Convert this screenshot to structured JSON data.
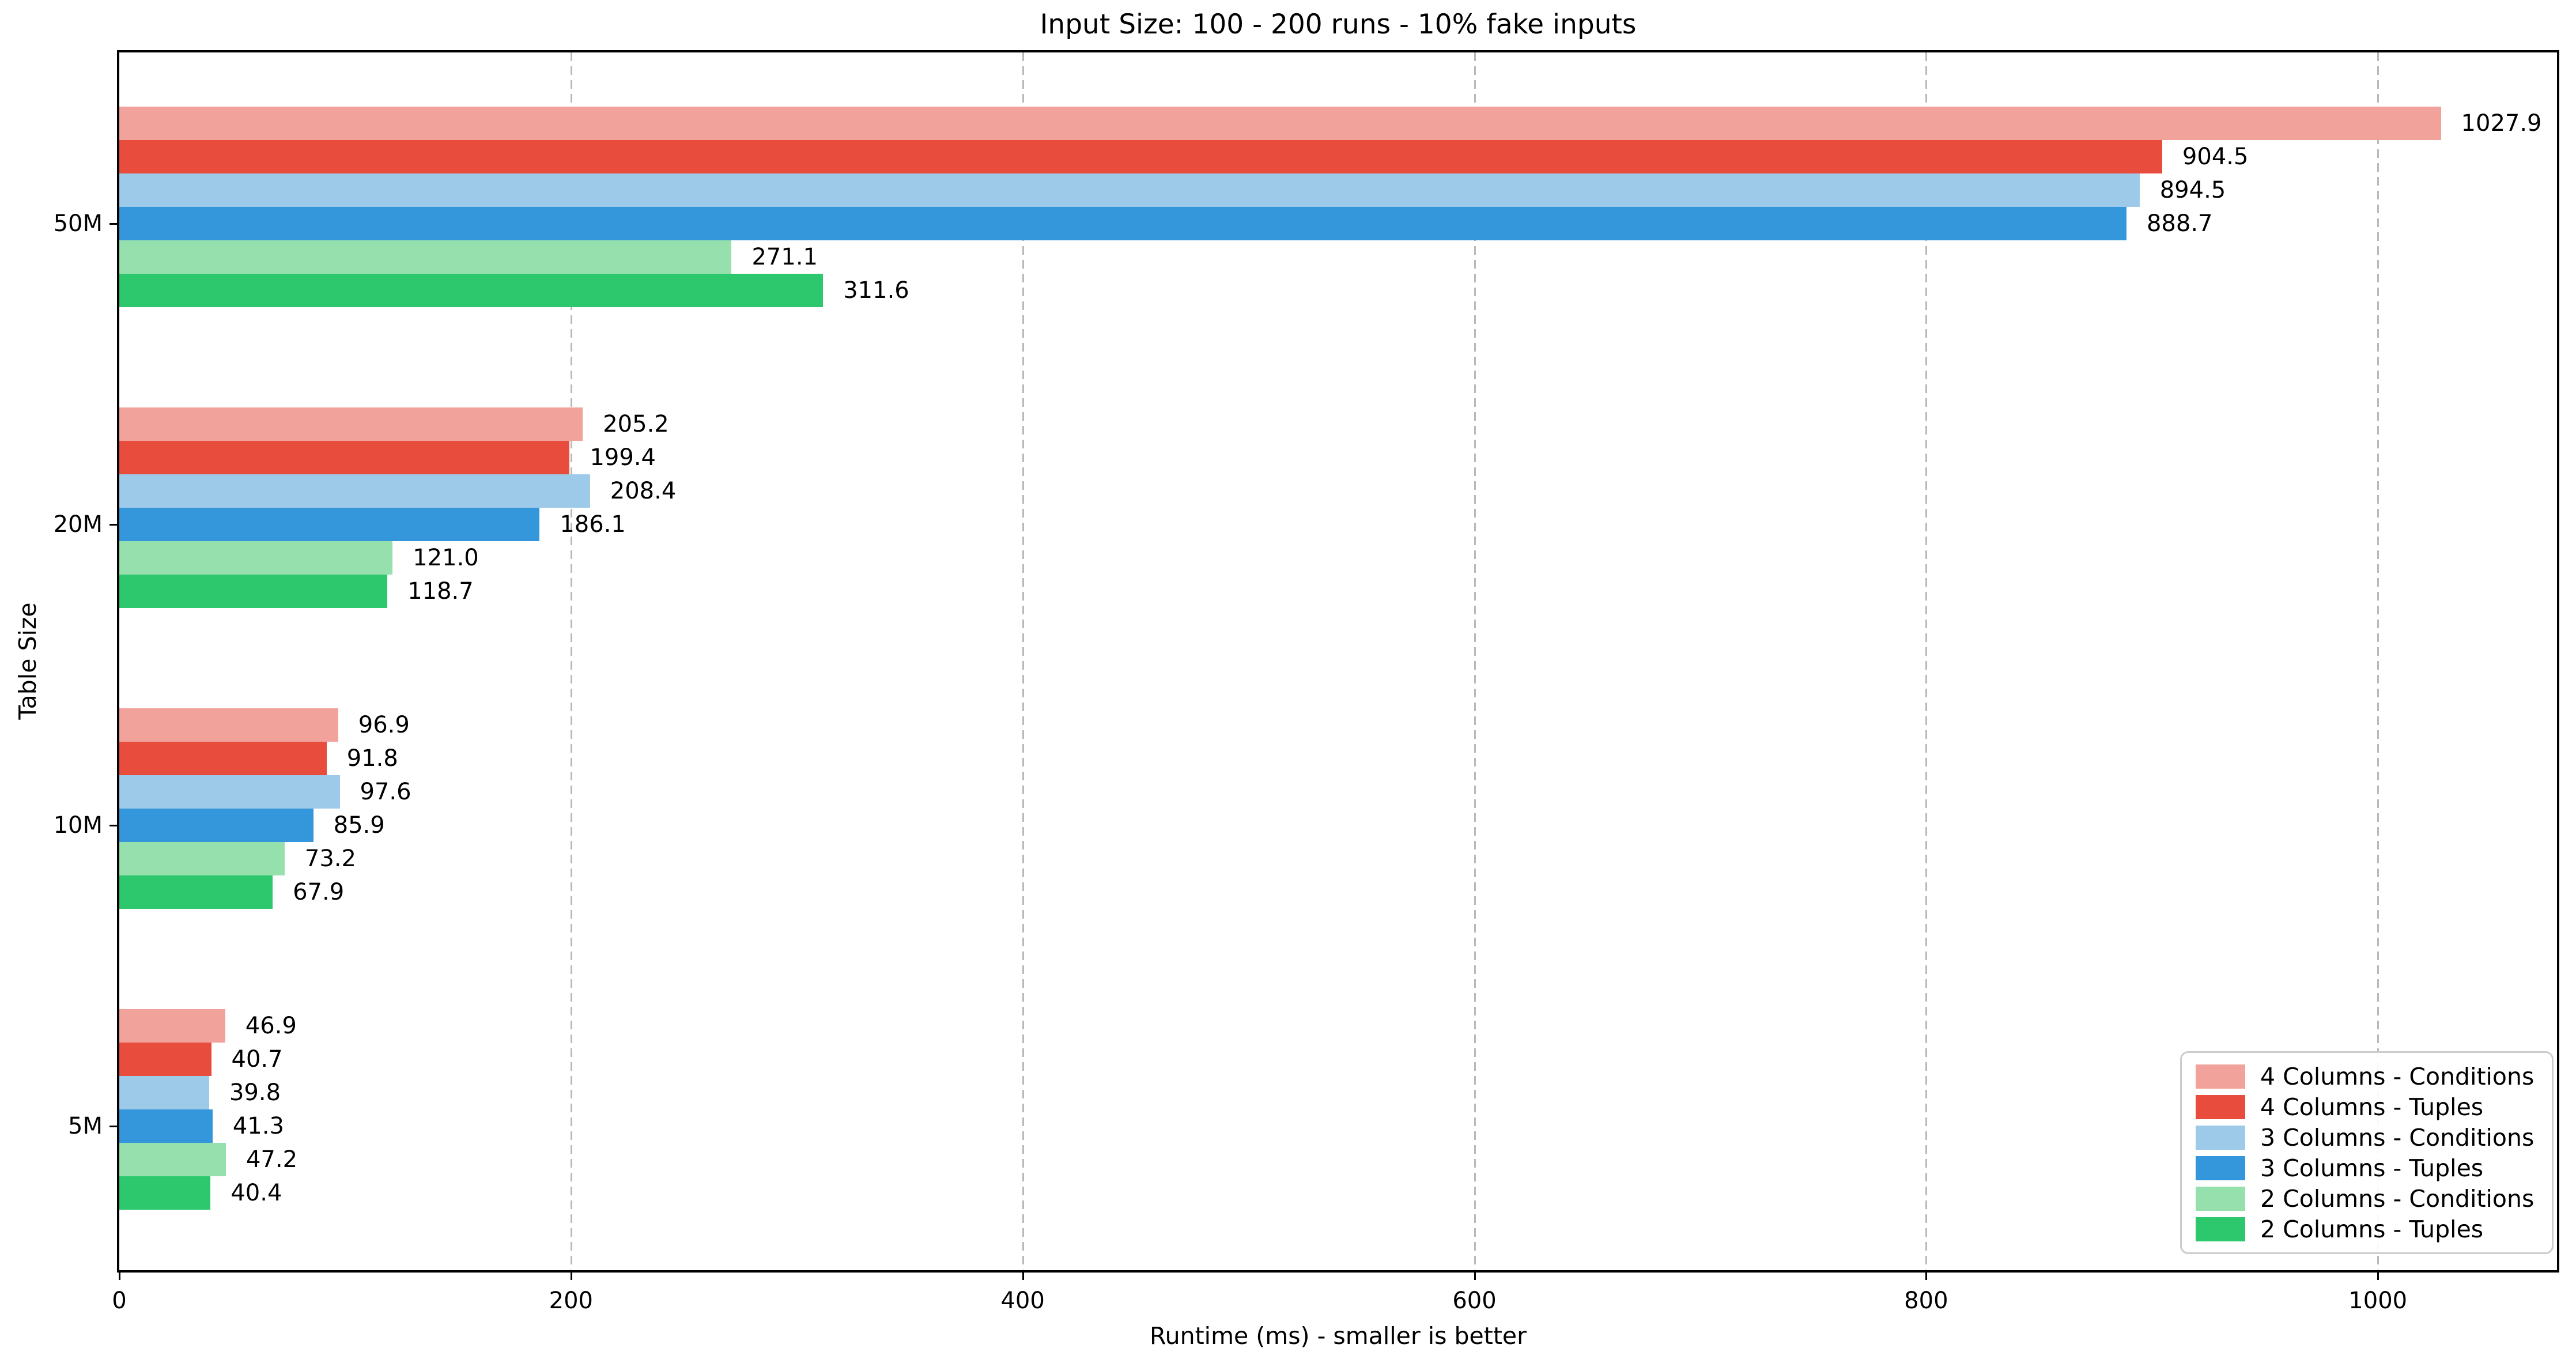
{
  "figure": {
    "title": "Input Size: 100 - 200 runs - 10% fake inputs",
    "xlabel": "Runtime (ms) - smaller is better",
    "ylabel": "Table Size"
  },
  "chart_data": {
    "type": "bar",
    "orientation": "horizontal",
    "title": "Input Size: 100 - 200 runs - 10% fake inputs",
    "xlabel": "Runtime (ms) - smaller is better",
    "ylabel": "Table Size",
    "categories": [
      "50M",
      "20M",
      "10M",
      "5M"
    ],
    "series": [
      {
        "name": "4 Columns - Conditions",
        "color": "#F1A29B",
        "values": [
          1027.9,
          205.2,
          96.9,
          46.9
        ]
      },
      {
        "name": "4 Columns - Tuples",
        "color": "#E74C3C",
        "values": [
          904.5,
          199.4,
          91.8,
          40.7
        ]
      },
      {
        "name": "3 Columns - Conditions",
        "color": "#9DCAE9",
        "values": [
          894.5,
          208.4,
          97.6,
          39.8
        ]
      },
      {
        "name": "3 Columns - Tuples",
        "color": "#3496DB",
        "values": [
          888.7,
          186.1,
          85.9,
          41.3
        ]
      },
      {
        "name": "2 Columns - Conditions",
        "color": "#96E0AD",
        "values": [
          271.1,
          121.0,
          73.2,
          47.2
        ]
      },
      {
        "name": "2 Columns - Tuples",
        "color": "#2DC86E",
        "values": [
          311.6,
          118.7,
          67.9,
          40.4
        ]
      }
    ],
    "xticks": [
      0,
      200,
      400,
      600,
      800,
      1000
    ],
    "xlim": [
      0,
      1079.3
    ],
    "grid": {
      "axis": "x",
      "style": "dashed",
      "color": "#b9b9b9"
    },
    "legend": {
      "position": "lower right"
    },
    "value_labels": true,
    "value_label_format": "one-decimal"
  }
}
